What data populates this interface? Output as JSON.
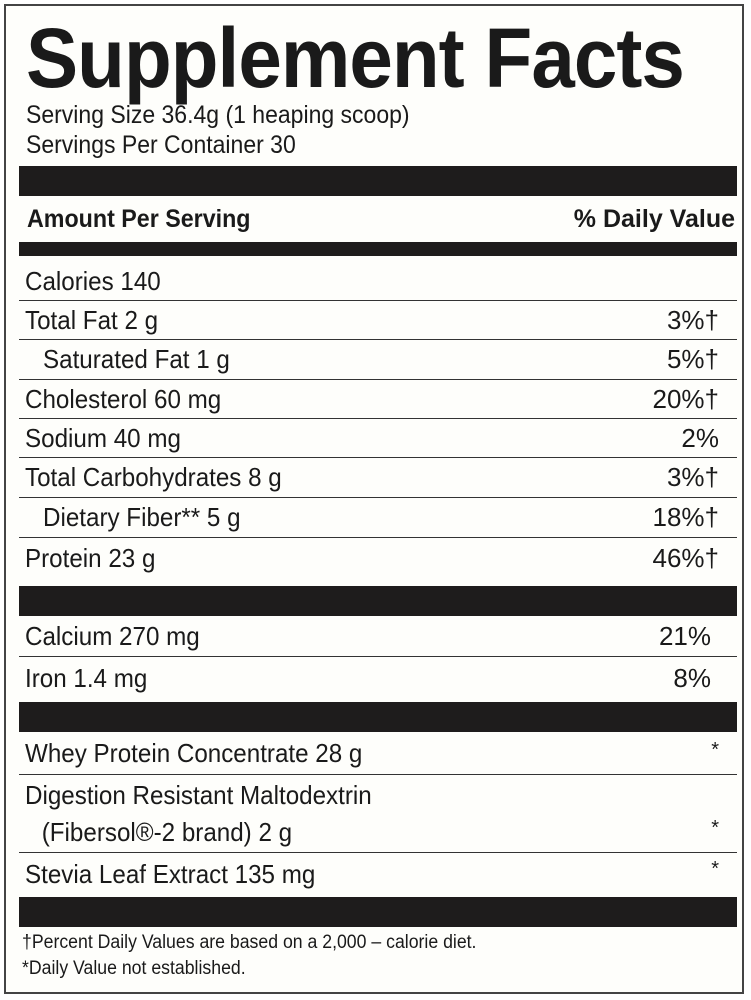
{
  "title": "Supplement Facts",
  "serving_size": "Serving Size 36.4g (1 heaping scoop)",
  "servings_per_container": "Servings Per Container 30",
  "header": {
    "amount": "Amount Per Serving",
    "daily_value": "% Daily Value"
  },
  "nutrients": [
    {
      "name": "Calories 140",
      "dv": ""
    },
    {
      "name": "Total Fat 2 g",
      "dv": "3%†"
    },
    {
      "name": "Saturated Fat 1 g",
      "dv": "5%†"
    },
    {
      "name": "Cholesterol 60 mg",
      "dv": "20%†"
    },
    {
      "name": "Sodium 40 mg",
      "dv": "2%"
    },
    {
      "name": "Total Carbohydrates 8 g",
      "dv": "3%†"
    },
    {
      "name": "Dietary Fiber** 5 g",
      "dv": "18%†"
    },
    {
      "name": "Protein 23 g",
      "dv": "46%†"
    }
  ],
  "minerals": [
    {
      "name": "Calcium 270 mg",
      "dv": "21%"
    },
    {
      "name": "Iron 1.4 mg",
      "dv": "8%"
    }
  ],
  "ingredients": [
    {
      "name": "Whey Protein Concentrate 28 g",
      "dv": "*"
    },
    {
      "name": "Digestion Resistant Maltodextrin",
      "name2": "(Fibersol®-2 brand) 2 g",
      "dv": "*"
    },
    {
      "name": "Stevia Leaf Extract 135 mg",
      "dv": "*"
    }
  ],
  "footnotes": [
    "†Percent Daily Values are based on a 2,000 – calorie diet.",
    "*Daily Value not established."
  ]
}
